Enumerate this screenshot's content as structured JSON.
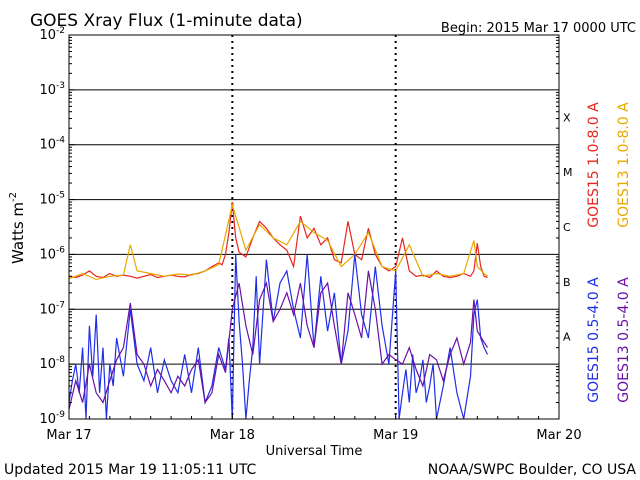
{
  "colors": {
    "goes15_long": "#e8261e",
    "goes13_long": "#e8a800",
    "goes15_short": "#1f2ee8",
    "goes13_short": "#6a0fa8",
    "grid": "#000000",
    "background": "#ffffff"
  },
  "header": {
    "title": "GOES Xray Flux (1-minute data)",
    "begin": "Begin:  2015 Mar 17 0000 UTC"
  },
  "footer": {
    "updated": "Updated 2015 Mar 19 11:05:11 UTC",
    "source": "NOAA/SWPC Boulder, CO USA"
  },
  "chart_data": {
    "type": "line",
    "title": "GOES Xray Flux (1-minute data)",
    "xlabel": "Universal Time",
    "ylabel": "Watts m",
    "ylabel_sup": "-2",
    "y_scale": "log",
    "ylim": [
      1e-09,
      0.01
    ],
    "xlim": [
      0,
      72
    ],
    "x_units": "hours since 2015 Mar 17 0000 UTC",
    "x_ticks": [
      {
        "x": 0,
        "label": "Mar 17"
      },
      {
        "x": 24,
        "label": "Mar 18"
      },
      {
        "x": 48,
        "label": "Mar 19"
      },
      {
        "x": 72,
        "label": "Mar 20"
      }
    ],
    "y_ticks": [
      {
        "base": "10",
        "exp": "-2",
        "value": 0.01
      },
      {
        "base": "10",
        "exp": "-3",
        "value": 0.001
      },
      {
        "base": "10",
        "exp": "-4",
        "value": 0.0001
      },
      {
        "base": "10",
        "exp": "-5",
        "value": 1e-05
      },
      {
        "base": "10",
        "exp": "-6",
        "value": 1e-06
      },
      {
        "base": "10",
        "exp": "-7",
        "value": 1e-07
      },
      {
        "base": "10",
        "exp": "-8",
        "value": 1e-08
      },
      {
        "base": "10",
        "exp": "-9",
        "value": 1e-09
      }
    ],
    "flare_classes": [
      {
        "label": "X",
        "value": 0.000316
      },
      {
        "label": "M",
        "value": 3.16e-05
      },
      {
        "label": "C",
        "value": 3.16e-06
      },
      {
        "label": "B",
        "value": 3.16e-07
      },
      {
        "label": "A",
        "value": 3.16e-08
      }
    ],
    "day_markers": [
      24,
      48
    ],
    "grid": "horizontal at each decade",
    "legend_position": "right (vertical labels)",
    "series": [
      {
        "name": "GOES15 1.0-8.0 A",
        "color": "#e8261e",
        "x": [
          0,
          1,
          2,
          3,
          4,
          5,
          6,
          7,
          8,
          9,
          10,
          11,
          12,
          13,
          14,
          15,
          16,
          17,
          18,
          19,
          20,
          21,
          22,
          22.5,
          23,
          23.5,
          24,
          24.5,
          25,
          26,
          27,
          28,
          29,
          30,
          31,
          32,
          33,
          34,
          35,
          36,
          37,
          38,
          39,
          40,
          41,
          42,
          43,
          44,
          45,
          46,
          47,
          48,
          49,
          50,
          51,
          52,
          53,
          54,
          55,
          56,
          57,
          58,
          59,
          59.5,
          60,
          60.5,
          61,
          61.5
        ],
        "y": [
          4e-07,
          3.8e-07,
          4.2e-07,
          5e-07,
          4e-07,
          3.8e-07,
          4.5e-07,
          4e-07,
          4.2e-07,
          4e-07,
          3.7e-07,
          4e-07,
          4.3e-07,
          3.8e-07,
          4e-07,
          4.2e-07,
          4e-07,
          3.9e-07,
          4.3e-07,
          4.5e-07,
          5e-07,
          6e-07,
          7e-07,
          6.5e-07,
          1e-06,
          2.5e-06,
          9e-06,
          2e-06,
          1.1e-06,
          9e-07,
          2e-06,
          4e-06,
          3e-06,
          2e-06,
          1.5e-06,
          1.2e-06,
          6e-07,
          5e-06,
          2e-06,
          3e-06,
          1.5e-06,
          2e-06,
          8e-07,
          7e-07,
          4e-06,
          1e-06,
          8e-07,
          3e-06,
          1e-06,
          6e-07,
          5e-07,
          6e-07,
          2e-06,
          5e-07,
          4e-07,
          4.2e-07,
          3.8e-07,
          5e-07,
          4e-07,
          3.8e-07,
          4e-07,
          4.5e-07,
          4e-07,
          5e-07,
          1.6e-06,
          6e-07,
          4e-07,
          3.8e-07
        ]
      },
      {
        "name": "GOES13 1.0-8.0 A",
        "color": "#e8a800",
        "x": [
          0,
          2,
          4,
          6,
          8,
          9,
          10,
          12,
          14,
          16,
          18,
          20,
          22,
          24,
          26,
          28,
          30,
          32,
          34,
          36,
          38,
          40,
          42,
          44,
          46,
          48,
          50,
          52,
          54,
          56,
          58,
          59.5,
          60,
          61,
          61.5
        ],
        "y": [
          3.6e-07,
          4.5e-07,
          3.5e-07,
          4e-07,
          4.2e-07,
          1.5e-06,
          5e-07,
          4.5e-07,
          4e-07,
          4.4e-07,
          4.2e-07,
          5e-07,
          6.5e-07,
          8e-06,
          1.2e-06,
          3.5e-06,
          2e-06,
          1.5e-06,
          4e-06,
          2.5e-06,
          1.8e-06,
          6e-07,
          1e-06,
          2.5e-06,
          6e-07,
          5e-07,
          1.5e-06,
          4e-07,
          4.5e-07,
          4e-07,
          4.5e-07,
          1.8e-06,
          6e-07,
          4.5e-07,
          4e-07
        ]
      },
      {
        "name": "GOES15 0.5-4.0 A",
        "color": "#1f2ee8",
        "x": [
          0,
          0.5,
          1,
          1.5,
          2,
          2.5,
          3,
          3.5,
          4,
          4.5,
          5,
          5.5,
          6,
          6.5,
          7,
          8,
          9,
          10,
          11,
          12,
          13,
          14,
          15,
          16,
          17,
          18,
          19,
          20,
          21,
          22,
          23,
          23.5,
          24,
          24.5,
          25,
          25.5,
          26,
          26.5,
          27,
          27.5,
          28,
          29,
          30,
          31,
          32,
          33,
          34,
          35,
          36,
          37,
          38,
          39,
          40,
          41,
          42,
          43,
          44,
          45,
          46,
          47,
          48,
          48.5,
          49,
          49.5,
          50,
          50.5,
          51,
          51.5,
          52,
          52.5,
          53,
          53.5,
          54,
          55,
          56,
          57,
          58,
          59,
          59.5,
          60,
          60.5,
          61,
          61.5
        ],
        "y": [
          2e-09,
          5e-09,
          1e-08,
          3e-09,
          2e-08,
          1e-09,
          5e-08,
          6e-09,
          8e-08,
          3e-09,
          2e-08,
          1e-09,
          1e-08,
          4e-09,
          3e-08,
          6e-09,
          1e-07,
          1e-08,
          5e-09,
          2e-08,
          3e-09,
          1.2e-08,
          5e-09,
          3e-09,
          1.5e-08,
          3e-09,
          2e-08,
          2e-09,
          4e-09,
          2e-08,
          8e-09,
          3e-08,
          1e-09,
          1e-06,
          6e-08,
          1e-08,
          1e-09,
          5e-09,
          2e-08,
          4e-07,
          1e-08,
          8e-07,
          6e-08,
          3e-07,
          5e-07,
          1e-07,
          3e-08,
          1e-06,
          2e-08,
          4e-07,
          4e-08,
          2e-07,
          1e-08,
          4e-08,
          1e-06,
          8e-08,
          3e-08,
          6e-07,
          5e-08,
          1e-08,
          5e-07,
          1e-09,
          3e-09,
          8e-09,
          2e-09,
          1.5e-08,
          3e-09,
          5e-09,
          1.2e-08,
          2e-09,
          4e-09,
          1e-08,
          1e-09,
          4e-09,
          2e-08,
          3e-09,
          1e-09,
          6e-09,
          8e-08,
          1.5e-07,
          3e-08,
          2e-08,
          1.5e-08
        ]
      },
      {
        "name": "GOES13 0.5-4.0 A",
        "color": "#6a0fa8",
        "x": [
          0,
          1,
          2,
          3,
          4,
          5,
          6,
          7,
          8,
          9,
          10,
          11,
          12,
          13,
          14,
          15,
          16,
          17,
          18,
          19,
          20,
          21,
          22,
          23,
          24,
          25,
          26,
          27,
          28,
          29,
          30,
          31,
          32,
          33,
          34,
          35,
          36,
          37,
          38,
          39,
          40,
          41,
          42,
          43,
          44,
          45,
          46,
          47,
          48,
          49,
          50,
          51,
          52,
          53,
          54,
          55,
          56,
          57,
          58,
          59,
          59.5,
          60,
          61,
          61.5
        ],
        "y": [
          1.5e-09,
          5e-09,
          2e-09,
          1e-08,
          3e-09,
          2e-09,
          5e-09,
          1.2e-08,
          2e-08,
          1.3e-07,
          1.5e-08,
          1e-08,
          4e-09,
          8e-09,
          5e-09,
          3e-09,
          6e-09,
          4e-09,
          8e-09,
          1.2e-08,
          2e-09,
          3e-09,
          1.5e-08,
          7e-09,
          1e-07,
          3e-07,
          5e-08,
          1.5e-08,
          1.5e-07,
          3e-07,
          6e-08,
          1e-07,
          2e-07,
          8e-08,
          3e-07,
          5e-08,
          2e-08,
          2e-07,
          3e-07,
          5e-08,
          1e-08,
          2e-07,
          8e-08,
          3e-08,
          5e-07,
          1e-07,
          1e-08,
          1.5e-08,
          1.2e-08,
          1e-08,
          2e-08,
          8e-09,
          4e-09,
          1.5e-08,
          1.2e-08,
          5e-09,
          1.5e-08,
          3e-08,
          1e-08,
          2.5e-08,
          1.5e-07,
          4e-08,
          2.5e-08,
          2e-08
        ]
      }
    ]
  }
}
